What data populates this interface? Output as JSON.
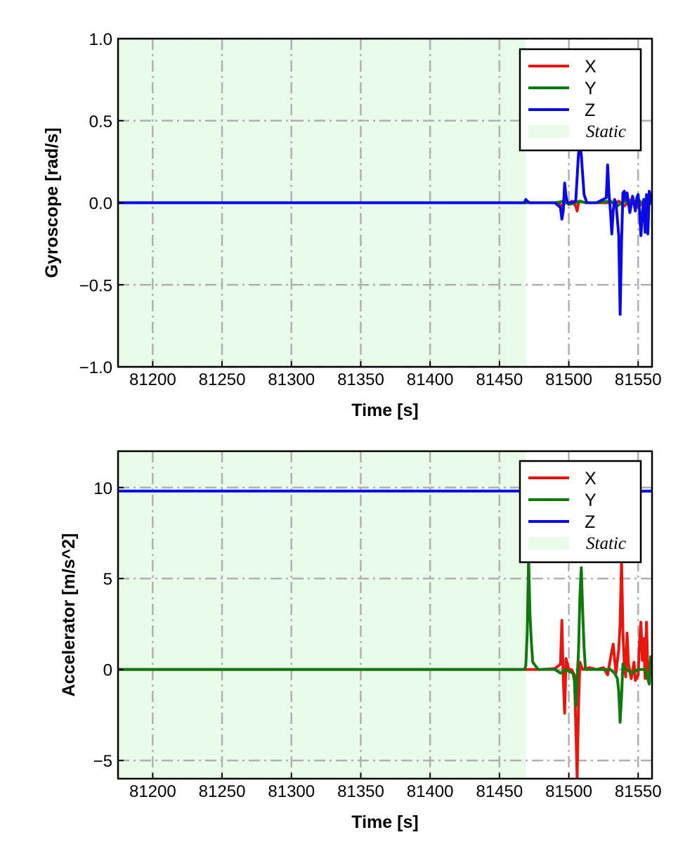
{
  "chart_data": [
    {
      "type": "line",
      "xlabel": "Time [s]",
      "ylabel": "Gyroscope [rad/s]",
      "xlim": [
        81175,
        81560
      ],
      "ylim": [
        -1.0,
        1.0
      ],
      "xticks": [
        81200,
        81250,
        81300,
        81350,
        81400,
        81450,
        81500,
        81550
      ],
      "xtick_labels": [
        "81200",
        "81250",
        "81300",
        "81350",
        "81400",
        "81450",
        "81500",
        "81550"
      ],
      "yticks": [
        -1.0,
        -0.5,
        0.0,
        0.5,
        1.0
      ],
      "ytick_labels": [
        "−1.0",
        "−0.5",
        "0.0",
        "0.5",
        "1.0"
      ],
      "grid": true,
      "legend_position": "top-right",
      "static_region": {
        "label": "Static",
        "x_start": 81175,
        "x_end": 81469,
        "color": "#e8fbe8"
      },
      "series": [
        {
          "name": "X",
          "color": "#e8160c",
          "x": [
            81175,
            81468,
            81480,
            81490,
            81496,
            81498,
            81500,
            81502,
            81505,
            81506,
            81507,
            81508,
            81512,
            81520,
            81528,
            81530,
            81533,
            81536,
            81540,
            81545,
            81550,
            81555,
            81560
          ],
          "y": [
            0.0,
            0.0,
            0.0,
            0.0,
            -0.02,
            0.02,
            -0.01,
            0.01,
            -0.02,
            -0.05,
            0.0,
            0.01,
            0.0,
            0.0,
            0.0,
            0.01,
            -0.01,
            0.01,
            -0.02,
            0.02,
            -0.03,
            0.02,
            0.0
          ]
        },
        {
          "name": "Y",
          "color": "#0e7a0d",
          "x": [
            81175,
            81468,
            81480,
            81490,
            81497,
            81500,
            81505,
            81508,
            81512,
            81520,
            81530,
            81535,
            81540,
            81545,
            81550,
            81555,
            81560
          ],
          "y": [
            0.0,
            0.0,
            0.0,
            0.0,
            0.01,
            -0.01,
            0.0,
            0.01,
            0.0,
            0.0,
            0.01,
            -0.02,
            0.01,
            -0.01,
            0.02,
            -0.02,
            0.0
          ]
        },
        {
          "name": "Z",
          "color": "#0a0ae6",
          "x": [
            81175,
            81468,
            81469,
            81470,
            81472,
            81490,
            81494,
            81495,
            81496,
            81497,
            81498,
            81499,
            81502,
            81505,
            81507,
            81508,
            81509,
            81511,
            81513,
            81520,
            81527,
            81528,
            81529,
            81530,
            81531,
            81532,
            81533,
            81534,
            81536,
            81537,
            81538,
            81539,
            81540,
            81541,
            81542,
            81543,
            81544,
            81546,
            81548,
            81549,
            81550,
            81551,
            81552,
            81553,
            81554,
            81555,
            81556,
            81557,
            81558,
            81560
          ],
          "y": [
            0.0,
            0.0,
            0.02,
            0.01,
            0.0,
            0.0,
            -0.03,
            -0.1,
            -0.05,
            0.12,
            0.04,
            0.0,
            0.0,
            0.01,
            0.3,
            0.36,
            0.29,
            0.05,
            0.0,
            0.0,
            0.03,
            0.23,
            0.05,
            -0.05,
            -0.19,
            -0.05,
            0.02,
            0.0,
            -0.2,
            -0.68,
            -0.25,
            0.06,
            0.07,
            0.02,
            0.06,
            0.0,
            -0.06,
            0.04,
            -0.05,
            0.03,
            0.05,
            -0.05,
            -0.2,
            -0.07,
            0.02,
            -0.18,
            0.05,
            -0.19,
            0.07,
            0.0
          ]
        }
      ]
    },
    {
      "type": "line",
      "xlabel": "Time [s]",
      "ylabel": "Accelerator [m/s^2]",
      "xlim": [
        81175,
        81560
      ],
      "ylim": [
        -6.0,
        12.0
      ],
      "xticks": [
        81200,
        81250,
        81300,
        81350,
        81400,
        81450,
        81500,
        81550
      ],
      "xtick_labels": [
        "81200",
        "81250",
        "81300",
        "81350",
        "81400",
        "81450",
        "81500",
        "81550"
      ],
      "yticks": [
        -5,
        0,
        5,
        10
      ],
      "ytick_labels": [
        "−5",
        "0",
        "5",
        "10"
      ],
      "grid": true,
      "legend_position": "top-right",
      "static_region": {
        "label": "Static",
        "x_start": 81175,
        "x_end": 81469,
        "color": "#e8fbe8"
      },
      "series": [
        {
          "name": "X",
          "color": "#e8160c",
          "x": [
            81175,
            81468,
            81480,
            81490,
            81494,
            81495,
            81496,
            81497,
            81498,
            81500,
            81502,
            81504,
            81505,
            81506,
            81507,
            81508,
            81510,
            81515,
            81520,
            81525,
            81528,
            81530,
            81532,
            81534,
            81536,
            81537,
            81538,
            81539,
            81540,
            81541,
            81542,
            81543,
            81545,
            81547,
            81548,
            81550,
            81551,
            81552,
            81553,
            81554,
            81555,
            81556,
            81557,
            81558,
            81560
          ],
          "y": [
            0.0,
            0.0,
            0.0,
            0.05,
            0.3,
            2.7,
            -0.5,
            -2.4,
            0.6,
            0.0,
            0.0,
            -0.3,
            -3.0,
            -6.0,
            -2.0,
            0.4,
            0.0,
            0.1,
            0.0,
            0.1,
            -0.3,
            0.6,
            1.4,
            -0.2,
            1.1,
            2.5,
            6.0,
            2.1,
            0.3,
            -0.4,
            2.0,
            0.3,
            -0.5,
            0.4,
            -0.6,
            -0.3,
            1.5,
            2.6,
            0.5,
            1.7,
            -0.5,
            2.6,
            -0.2,
            0.0,
            0.0
          ]
        },
        {
          "name": "Y",
          "color": "#0e7a0d",
          "x": [
            81175,
            81468,
            81469,
            81470,
            81471,
            81472,
            81473,
            81474,
            81478,
            81490,
            81494,
            81498,
            81500,
            81503,
            81504,
            81505,
            81506,
            81507,
            81508,
            81509,
            81510,
            81511,
            81512,
            81515,
            81520,
            81525,
            81530,
            81533,
            81535,
            81536,
            81537,
            81538,
            81539,
            81540,
            81542,
            81545,
            81550,
            81555,
            81558,
            81559,
            81560
          ],
          "y": [
            0.0,
            0.0,
            0.2,
            2.0,
            6.2,
            3.0,
            1.5,
            0.4,
            0.0,
            0.0,
            -0.2,
            0.0,
            -0.1,
            -0.2,
            -0.6,
            -2.0,
            -0.5,
            1.0,
            4.0,
            5.6,
            3.2,
            1.2,
            0.0,
            0.0,
            0.0,
            0.0,
            0.0,
            -0.2,
            -0.5,
            -1.2,
            -2.9,
            -1.5,
            0.3,
            0.1,
            0.0,
            -0.2,
            0.0,
            0.0,
            -0.8,
            0.7,
            0.0
          ]
        },
        {
          "name": "Z",
          "color": "#0a0ae6",
          "x": [
            81175,
            81300,
            81400,
            81468,
            81469,
            81470,
            81490,
            81495,
            81497,
            81500,
            81505,
            81508,
            81510,
            81520,
            81530,
            81538,
            81540,
            81550,
            81560
          ],
          "y": [
            9.81,
            9.81,
            9.81,
            9.81,
            9.7,
            9.85,
            9.81,
            9.7,
            9.9,
            9.8,
            9.75,
            9.9,
            9.8,
            9.82,
            9.8,
            9.7,
            9.85,
            9.8,
            9.81
          ]
        }
      ]
    }
  ]
}
